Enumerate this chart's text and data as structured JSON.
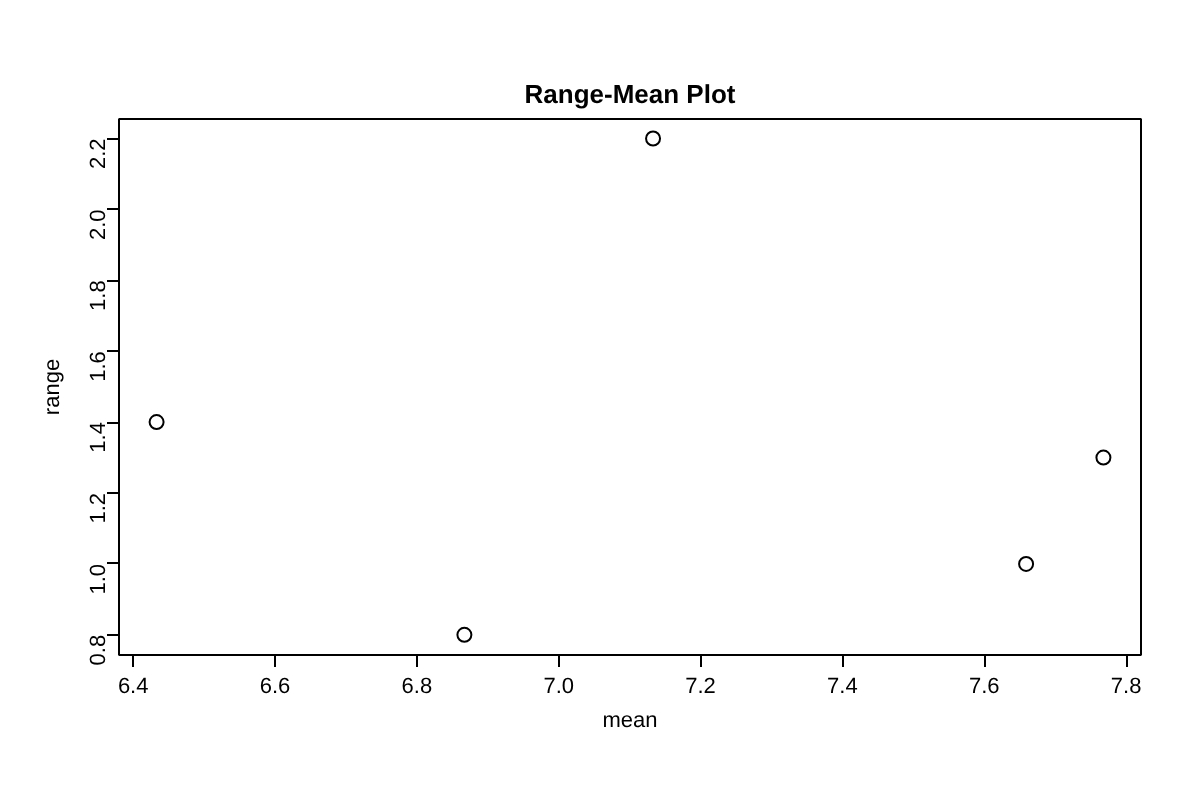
{
  "chart_data": {
    "type": "scatter",
    "title": "Range-Mean Plot",
    "xlabel": "mean",
    "ylabel": "range",
    "x": [
      6.433,
      6.867,
      7.133,
      7.659,
      7.768
    ],
    "values": [
      1.4,
      0.8,
      2.2,
      1.0,
      1.3
    ],
    "color": "#000000",
    "marker": "circle",
    "grid": false,
    "xlim": [
      6.38,
      7.821
    ],
    "ylim": [
      0.743,
      2.255
    ],
    "xticks": [
      6.4,
      6.6,
      6.8,
      {
        "value": 7,
        "label": "7.0"
      },
      7.2,
      7.4,
      7.6,
      7.8
    ],
    "yticks": [
      0.8,
      {
        "value": 1,
        "label": "1.0"
      },
      1.2,
      1.4,
      1.6,
      1.8,
      {
        "value": 2,
        "label": "2.0"
      },
      2.2
    ]
  }
}
